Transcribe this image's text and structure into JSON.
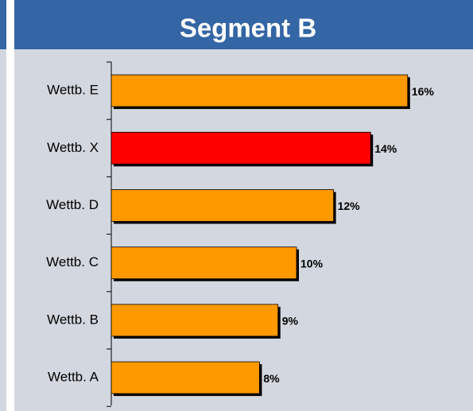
{
  "chart_data": {
    "type": "bar",
    "orientation": "horizontal",
    "title": "Segment B",
    "categories": [
      "Wettb. E",
      "Wettb. X",
      "Wettb. D",
      "Wettb. C",
      "Wettb. B",
      "Wettb. A"
    ],
    "values": [
      16,
      14,
      12,
      10,
      9,
      8
    ],
    "value_labels": [
      "16%",
      "14%",
      "12%",
      "10%",
      "9%",
      "8%"
    ],
    "colors": [
      "#ff9900",
      "#ff0000",
      "#ff9900",
      "#ff9900",
      "#ff9900",
      "#ff9900"
    ]
  }
}
